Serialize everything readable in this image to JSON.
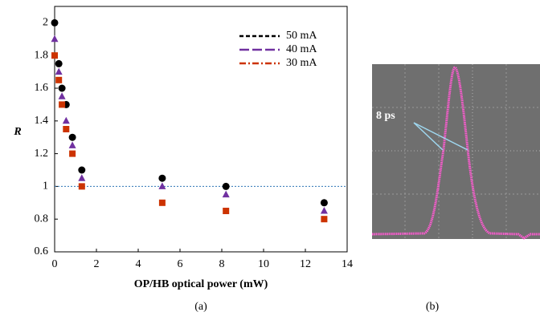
{
  "chart_data": {
    "type": "scatter",
    "xlabel": "OP/HB optical power (mW)",
    "ylabel": "R",
    "caption": "(a)",
    "x": [
      0,
      0.2,
      0.35,
      0.55,
      0.85,
      1.3,
      5.15,
      8.2,
      12.9
    ],
    "series": [
      {
        "name": "50 mA",
        "color": "#000000",
        "marker": "circle",
        "dash": "dashed",
        "values": [
          2,
          1.75,
          1.6,
          1.5,
          1.3,
          1.1,
          1.05,
          1,
          0.9
        ]
      },
      {
        "name": "40 mA",
        "color": "#7030a0",
        "marker": "triangle",
        "dash": "long-dash",
        "values": [
          1.9,
          1.7,
          1.55,
          1.4,
          1.25,
          1.05,
          1,
          0.95,
          0.85
        ]
      },
      {
        "name": "30 mA",
        "color": "#cc3300",
        "marker": "square",
        "dash": "dash-dot",
        "values": [
          1.8,
          1.65,
          1.5,
          1.35,
          1.2,
          1,
          0.9,
          0.85,
          0.8
        ]
      }
    ],
    "xlim": [
      0,
      14
    ],
    "xticks": [
      0,
      2,
      4,
      6,
      8,
      10,
      12,
      14
    ],
    "ylim": [
      0.6,
      2.1
    ],
    "yticks": [
      0.6,
      0.8,
      1,
      1.2,
      1.4,
      1.6,
      1.8,
      2
    ],
    "reference_line": {
      "y": 1,
      "color": "#2e75b6"
    },
    "legend": "top-right"
  },
  "panel_b": {
    "annotation": "8 ps",
    "caption": "(b)"
  }
}
